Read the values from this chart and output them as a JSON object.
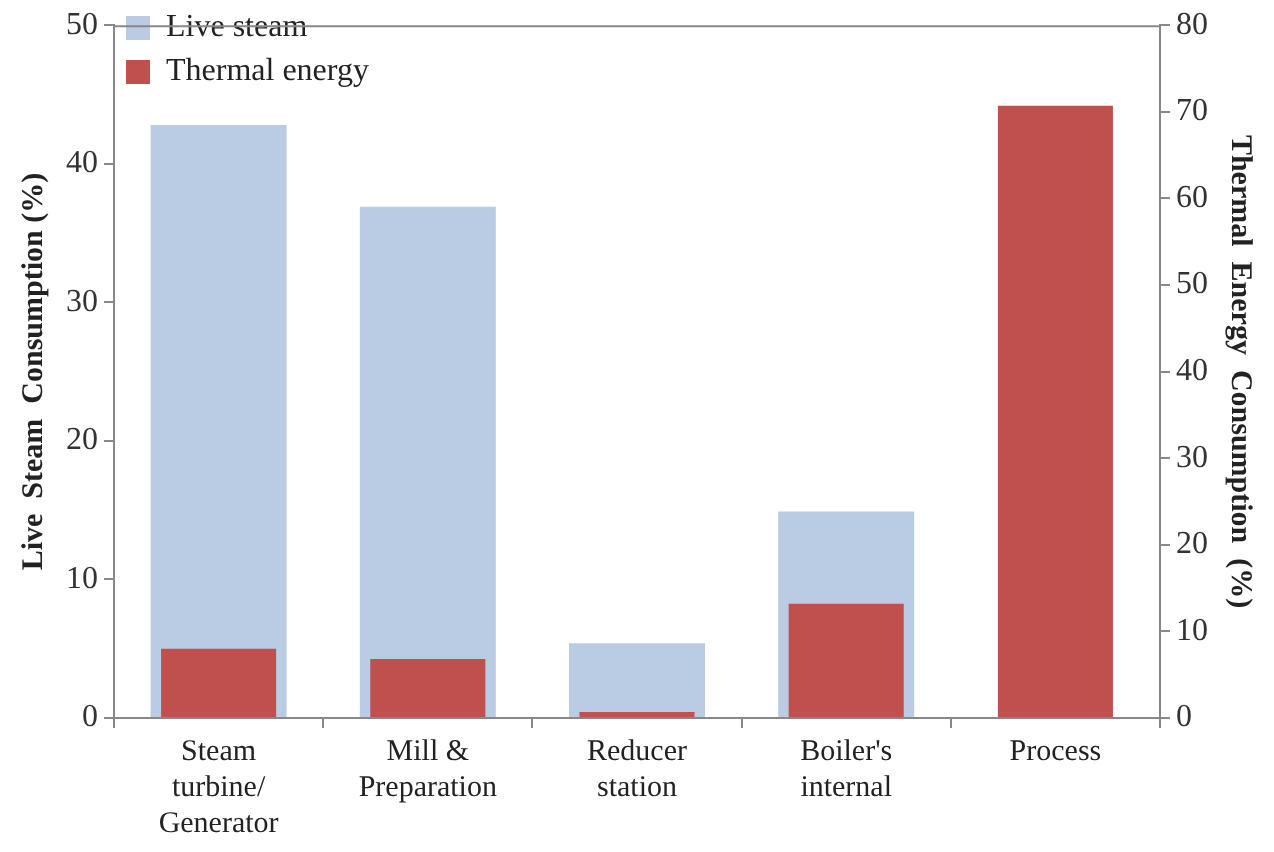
{
  "chart_data": {
    "type": "bar",
    "ylabel": "Live  Steam  Consumption (%)",
    "y2label": "Thermal  Energy  Consumption  (%)",
    "categories": [
      "Steam turbine/ Generator",
      "Mill & Preparation",
      "Reducer station",
      "Boiler's internal",
      "Process"
    ],
    "series": [
      {
        "name": "Live steam",
        "color": "#b9cce4",
        "values": [
          42.8,
          36.9,
          5.4,
          14.9,
          null
        ]
      },
      {
        "name": "Thermal energy",
        "color": "#c0504d",
        "values": [
          8.0,
          6.8,
          0.7,
          13.2,
          70.7
        ],
        "axis": "y2"
      }
    ],
    "ylim": [
      0,
      50
    ],
    "yticks": [
      0,
      10,
      20,
      30,
      40,
      50
    ],
    "y2lim": [
      0,
      80
    ],
    "y2ticks": [
      0,
      10,
      20,
      30,
      40,
      50,
      60,
      70,
      80
    ],
    "legend": "top left",
    "grid": false
  }
}
